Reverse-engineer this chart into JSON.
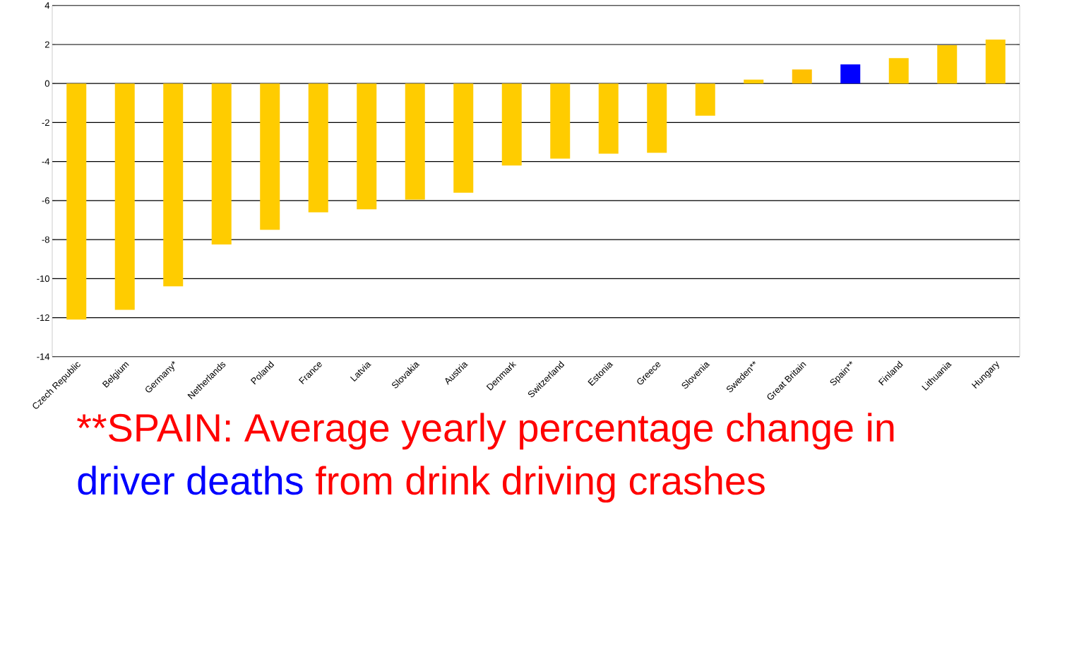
{
  "chart_data": {
    "type": "bar",
    "categories": [
      "Czech Republic",
      "Belgium",
      "Germany*",
      "Netherlands",
      "Poland",
      "France",
      "Latvia",
      "Slovakia",
      "Austria",
      "Denmark",
      "Switzerland",
      "Estonia",
      "Greece",
      "Slovenia",
      "Sweden**",
      "Great Britain",
      "Spain**",
      "Finland",
      "Lithuania",
      "Hungary"
    ],
    "values": [
      -12.1,
      -11.6,
      -10.4,
      -8.25,
      -7.5,
      -6.6,
      -6.45,
      -5.95,
      -5.6,
      -4.2,
      -3.85,
      -3.6,
      -3.55,
      -1.65,
      0.2,
      0.72,
      0.98,
      1.3,
      1.96,
      2.25
    ],
    "colors": [
      "#ffcc00",
      "#ffcc00",
      "#ffcc00",
      "#ffcc00",
      "#ffcc00",
      "#ffcc00",
      "#ffcc00",
      "#ffcc00",
      "#ffcc00",
      "#ffcc00",
      "#ffcc00",
      "#ffcc00",
      "#ffcc00",
      "#ffcc00",
      "#ffcc00",
      "#ffc000",
      "#0000ff",
      "#ffcc00",
      "#ffcc00",
      "#ffcc00"
    ],
    "ylim": [
      -14,
      4
    ],
    "yticks": [
      -14,
      -12,
      -10,
      -8,
      -6,
      -4,
      -2,
      0,
      2,
      4
    ],
    "grid": "y",
    "annotations": [
      "**SPAIN: Average yearly percentage change in",
      "driver deaths",
      "from drink driving crashes"
    ]
  }
}
